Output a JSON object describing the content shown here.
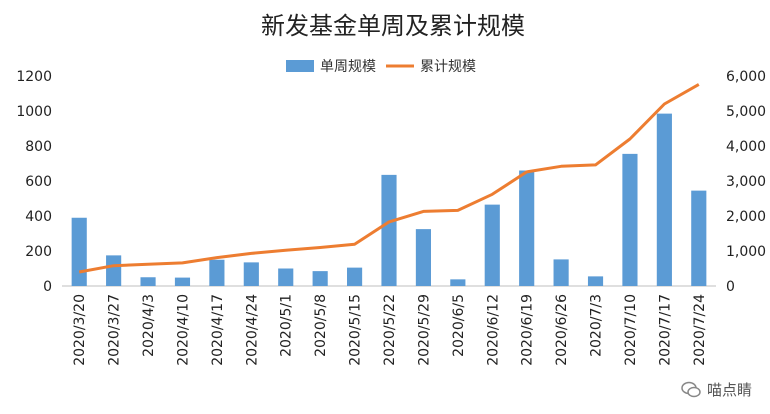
{
  "chart_data": {
    "type": "bar+line",
    "title": "新发基金单周及累计规模",
    "categories": [
      "2020/3/20",
      "2020/3/27",
      "2020/4/3",
      "2020/4/10",
      "2020/4/17",
      "2020/4/24",
      "2020/5/1",
      "2020/5/8",
      "2020/5/15",
      "2020/5/22",
      "2020/5/29",
      "2020/6/5",
      "2020/6/12",
      "2020/6/19",
      "2020/6/26",
      "2020/7/3",
      "2020/7/10",
      "2020/7/17",
      "2020/7/24"
    ],
    "series": [
      {
        "name": "单周规模",
        "type": "bar",
        "axis": "left",
        "color": "#5b9bd5",
        "values": [
          390,
          175,
          50,
          48,
          150,
          135,
          100,
          85,
          105,
          635,
          325,
          38,
          465,
          660,
          152,
          55,
          755,
          985,
          545
        ]
      },
      {
        "name": "累计规模",
        "type": "line",
        "axis": "right",
        "color": "#ed7d31",
        "values": [
          400,
          580,
          620,
          660,
          810,
          930,
          1020,
          1100,
          1190,
          1830,
          2130,
          2160,
          2620,
          3260,
          3420,
          3460,
          4200,
          5200,
          5760
        ]
      }
    ],
    "y_left": {
      "min": 0,
      "max": 1200,
      "ticks": [
        "0",
        "200",
        "400",
        "600",
        "800",
        "1000",
        "1200"
      ]
    },
    "y_right": {
      "min": 0,
      "max": 6000,
      "ticks": [
        "0",
        "1,000",
        "2,000",
        "3,000",
        "4,000",
        "5,000",
        "6,000"
      ]
    },
    "legend": {
      "position": "top"
    },
    "grid": false
  },
  "watermark": {
    "icon": "wechat-icon",
    "text": "喵点睛"
  }
}
